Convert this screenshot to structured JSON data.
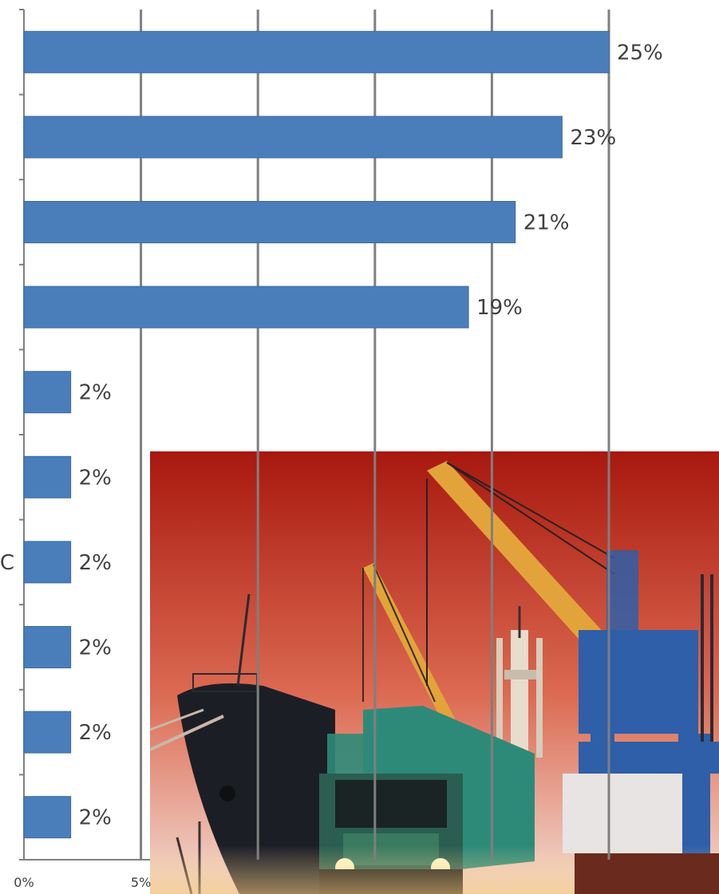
{
  "chart_data": {
    "type": "bar",
    "orientation": "horizontal",
    "categories": [
      "",
      "",
      "",
      "",
      "",
      "",
      "C",
      "",
      "",
      ""
    ],
    "values": [
      25,
      23,
      21,
      19,
      2,
      2,
      2,
      2,
      2,
      2
    ],
    "data_labels": [
      "25%",
      "23%",
      "21%",
      "19%",
      "2%",
      "2%",
      "2%",
      "2%",
      "2%",
      "2%"
    ],
    "title": "",
    "xlabel": "",
    "ylabel": "",
    "xlim": [
      0,
      25
    ],
    "x_ticks": [
      {
        "value": 0,
        "label": "0%"
      },
      {
        "value": 5,
        "label": "5%"
      },
      {
        "value": 10,
        "label": ""
      },
      {
        "value": 15,
        "label": ""
      },
      {
        "value": 20,
        "label": ""
      },
      {
        "value": 25,
        "label": ""
      }
    ],
    "grid": true,
    "bar_color": "#4a7ebb",
    "grid_color": "#7f7f7f"
  },
  "photo": {
    "subject": "port-scene-icon",
    "sky_top": "#a8180e",
    "sky_bottom": "#f2dcd2",
    "crane_color": "#e2a43a",
    "gantry_color": "#2e5fa8",
    "truck_color": "#2e8a78",
    "hull_color": "#1c1e26"
  }
}
